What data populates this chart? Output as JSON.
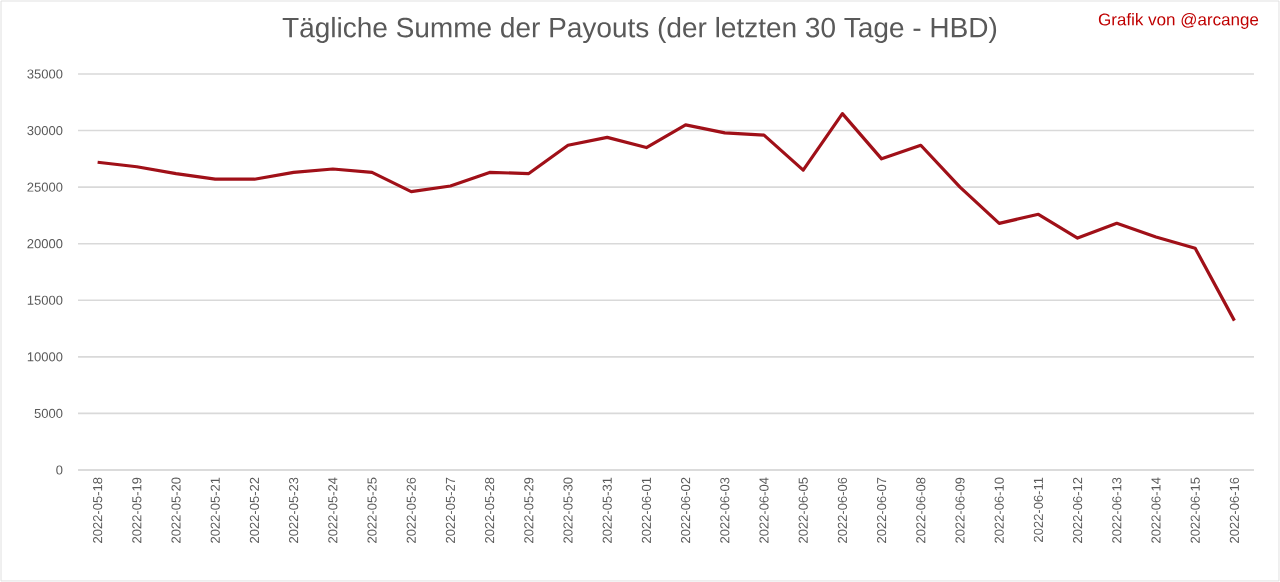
{
  "chart_data": {
    "type": "line",
    "title": "Tägliche Summe der Payouts (der letzten 30 Tage - HBD)",
    "annotations": [
      "Grafik von @arcange"
    ],
    "categories": [
      "2022-05-18",
      "2022-05-19",
      "2022-05-20",
      "2022-05-21",
      "2022-05-22",
      "2022-05-23",
      "2022-05-24",
      "2022-05-25",
      "2022-05-26",
      "2022-05-27",
      "2022-05-28",
      "2022-05-29",
      "2022-05-30",
      "2022-05-31",
      "2022-06-01",
      "2022-06-02",
      "2022-06-03",
      "2022-06-04",
      "2022-06-05",
      "2022-06-06",
      "2022-06-07",
      "2022-06-08",
      "2022-06-09",
      "2022-06-10",
      "2022-06-11",
      "2022-06-12",
      "2022-06-13",
      "2022-06-14",
      "2022-06-15",
      "2022-06-16"
    ],
    "values": [
      27200,
      26800,
      26200,
      25700,
      25700,
      26300,
      26600,
      26300,
      24600,
      25100,
      26300,
      26200,
      28700,
      29400,
      28500,
      30500,
      29800,
      29600,
      26500,
      31500,
      27500,
      28700,
      25000,
      21800,
      22600,
      20500,
      21800,
      20600,
      19600,
      13200
    ],
    "color": "#a01018",
    "ylim": [
      0,
      35000
    ],
    "yticks": [
      0,
      5000,
      10000,
      15000,
      20000,
      25000,
      30000,
      35000
    ],
    "grid": "y"
  }
}
